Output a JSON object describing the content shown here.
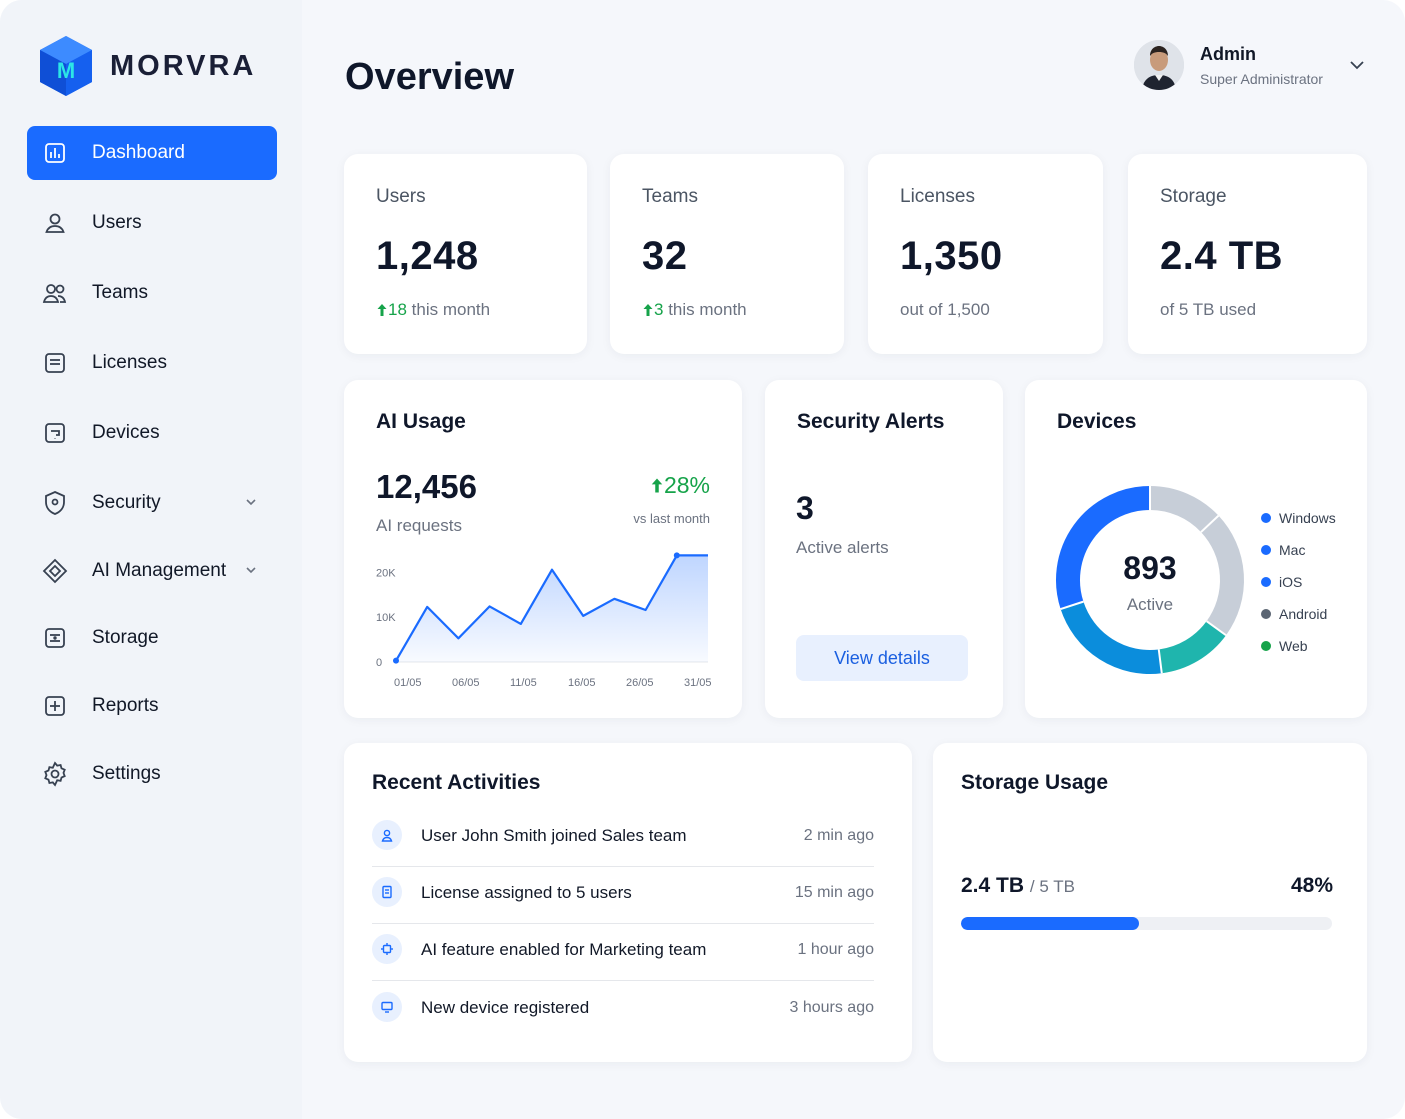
{
  "brand": {
    "name": "MORVRA"
  },
  "sidebar": {
    "items": [
      {
        "label": "Dashboard",
        "icon": "dashboard-icon",
        "active": true
      },
      {
        "label": "Users",
        "icon": "user-icon"
      },
      {
        "label": "Teams",
        "icon": "teams-icon"
      },
      {
        "label": "Licenses",
        "icon": "license-icon"
      },
      {
        "label": "Devices",
        "icon": "device-icon"
      },
      {
        "label": "Security",
        "icon": "shield-icon",
        "expandable": true
      },
      {
        "label": "AI Management",
        "icon": "ai-diamond-icon",
        "expandable": true
      },
      {
        "label": "Storage",
        "icon": "storage-icon"
      },
      {
        "label": "Reports",
        "icon": "report-icon"
      },
      {
        "label": "Settings",
        "icon": "gear-icon"
      }
    ]
  },
  "header": {
    "title": "Overview",
    "user": {
      "name": "Admin",
      "role": "Super Administrator"
    }
  },
  "stats": [
    {
      "label": "Users",
      "value": "1,248",
      "trend": "18",
      "sub": "this month"
    },
    {
      "label": "Teams",
      "value": "32",
      "trend": "3",
      "sub": "this month"
    },
    {
      "label": "Licenses",
      "value": "1,350",
      "sub": "out of 1,500"
    },
    {
      "label": "Storage",
      "value": "2.4 TB",
      "sub": "of 5 TB used"
    }
  ],
  "ai_usage": {
    "title": "AI Usage",
    "value": "12,456",
    "caption": "AI requests",
    "change": "28%",
    "change_caption": "vs last month"
  },
  "security": {
    "title": "Security Alerts",
    "value": "3",
    "caption": "Active alerts",
    "button": "View details"
  },
  "devices": {
    "title": "Devices",
    "value": "893",
    "caption": "Active",
    "legend": [
      {
        "name": "Windows",
        "color": "#1a6bff"
      },
      {
        "name": "Mac",
        "color": "#1a6bff"
      },
      {
        "name": "iOS",
        "color": "#1a6bff"
      },
      {
        "name": "Android",
        "color": "#5b6573"
      },
      {
        "name": "Web",
        "color": "#16a34a"
      }
    ]
  },
  "activities": {
    "title": "Recent Activities",
    "items": [
      {
        "text": "User John Smith joined Sales team",
        "time": "2 min ago",
        "icon": "user-icon"
      },
      {
        "text": "License assigned to 5 users",
        "time": "15 min ago",
        "icon": "license-icon"
      },
      {
        "text": "AI feature enabled for Marketing team",
        "time": "1 hour ago",
        "icon": "ai-icon"
      },
      {
        "text": "New device registered",
        "time": "3 hours ago",
        "icon": "device-icon"
      }
    ]
  },
  "storage_usage": {
    "title": "Storage Usage",
    "used": "2.4 TB",
    "total": "/ 5 TB",
    "percent_label": "48%",
    "fraction": 0.48
  },
  "chart_data": [
    {
      "type": "area",
      "title": "",
      "xlabel": "",
      "ylabel": "",
      "x_ticks": [
        "01/05",
        "06/05",
        "11/05",
        "16/05",
        "26/05",
        "31/05"
      ],
      "y_ticks": [
        "0",
        "10K",
        "20K"
      ],
      "ylim": [
        0,
        25000
      ],
      "x": [
        1,
        4,
        7,
        10,
        13,
        16,
        19,
        22,
        25,
        28,
        31
      ],
      "values": [
        300,
        12300,
        5300,
        12400,
        8500,
        20600,
        10300,
        14100,
        11600,
        23800,
        23800
      ],
      "color": "#1a6bff"
    },
    {
      "type": "pie",
      "title": "",
      "categories": [
        "Windows",
        "Mac",
        "iOS",
        "Android",
        "Web"
      ],
      "values": [
        30,
        22,
        13,
        13,
        22
      ],
      "colors": [
        "#1a6bff",
        "#0b8ddc",
        "#1fb5ad",
        "#c7ced8",
        "#c7ced8"
      ]
    }
  ]
}
